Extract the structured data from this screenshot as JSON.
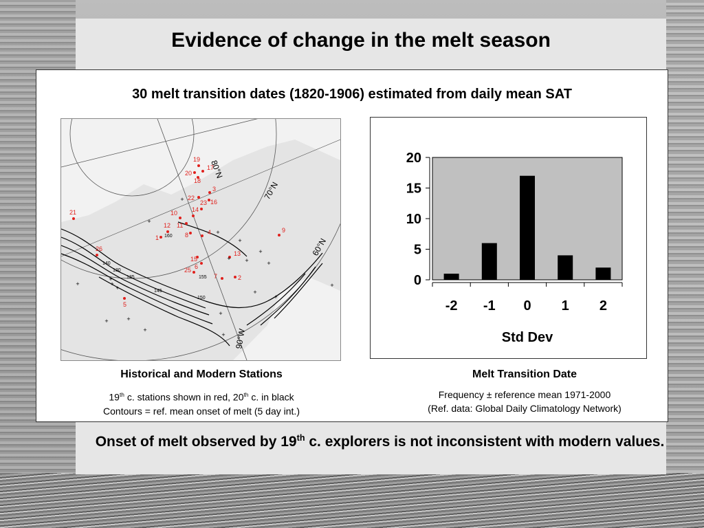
{
  "slide": {
    "title": "Evidence of change in the melt season",
    "subtitle": "30 melt transition dates (1820-1906) estimated from daily mean SAT",
    "map_caption": {
      "title": "Historical and Modern Stations",
      "line1_a": "19",
      "line1_sup_a": "th",
      "line1_b": " c. stations shown in red, 20",
      "line1_sup_b": "th",
      "line1_c": " c. in black",
      "line2": "Contours = ref. mean onset of melt (5 day int.)"
    },
    "chart_caption": {
      "title": "Melt Transition Date",
      "line1": "Frequency ± reference mean 1971-2000",
      "line2": "(Ref. data: Global Daily Climatology Network)"
    },
    "conclusion_a": "Onset of melt observed by 19",
    "conclusion_sup": "th",
    "conclusion_b": " c. explorers is not inconsistent with modern values."
  },
  "map": {
    "lat_labels": [
      "80°N",
      "70°N",
      "60°N"
    ],
    "lon_label": "90°W",
    "contour_labels": [
      "130",
      "135",
      "140",
      "145",
      "150",
      "155",
      "160"
    ],
    "station_labels": [
      "19",
      "20",
      "17",
      "18",
      "3",
      "22",
      "16",
      "23",
      "10",
      "14",
      "11",
      "12",
      "1",
      "8",
      "4",
      "9",
      "21",
      "26",
      "15",
      "6",
      "13",
      "25",
      "7",
      "2",
      "5"
    ],
    "colors": {
      "historical": "#e0201c",
      "modern": "#000000"
    }
  },
  "chart_data": {
    "type": "bar",
    "categories": [
      "-2",
      "-1",
      "0",
      "1",
      "2"
    ],
    "values": [
      1,
      6,
      17,
      4,
      2
    ],
    "xlabel": "Std Dev",
    "ylabel": "",
    "ylim": [
      0,
      20
    ],
    "yticks": [
      0,
      5,
      10,
      15,
      20
    ],
    "plot_background": "#c0c0c0",
    "bar_color": "#000000"
  }
}
